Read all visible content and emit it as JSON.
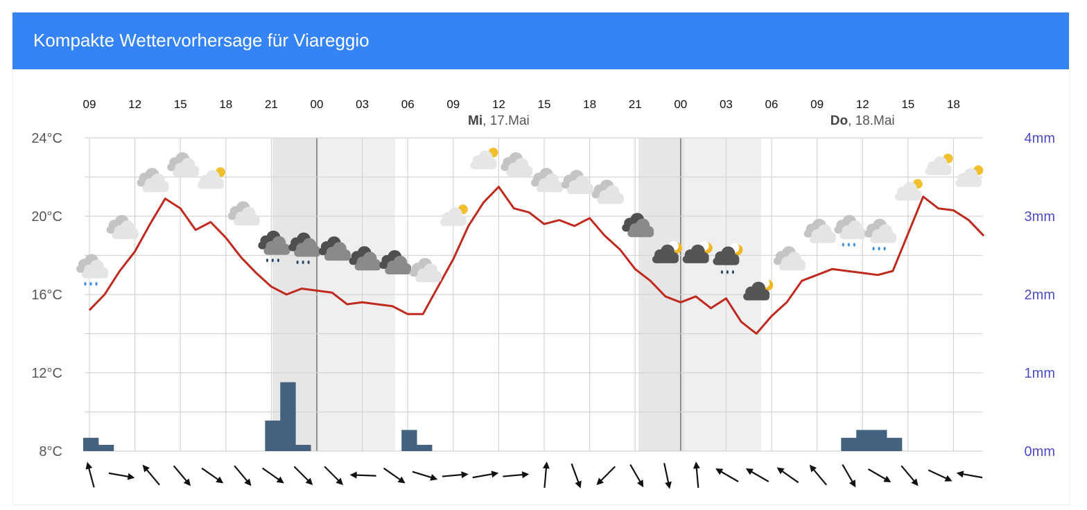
{
  "header": {
    "title": "Kompakte Wettervorhersage für Viareggio"
  },
  "colors": {
    "header_bg": "#3483f7",
    "temperature_line": "#c0291e",
    "precipitation_bar": "#42627f",
    "night_shade": "#efefef",
    "precip_axis_text": "#4b4bc4"
  },
  "chart_data": {
    "type": "line",
    "x_ticks": [
      "09",
      "12",
      "15",
      "18",
      "21",
      "00",
      "03",
      "06",
      "09",
      "12",
      "15",
      "18",
      "21",
      "00",
      "03",
      "06",
      "09",
      "12",
      "15",
      "18"
    ],
    "day_labels": [
      {
        "weekday": "Mi",
        "date": ", 17.Mai"
      },
      {
        "weekday": "Do",
        "date": ", 18.Mai"
      }
    ],
    "y_left": {
      "ticks": [
        "24°C",
        "20°C",
        "16°C",
        "12°C",
        "8°C"
      ],
      "range": [
        8,
        24
      ]
    },
    "y_right": {
      "ticks": [
        "4mm",
        "3mm",
        "2mm",
        "1mm",
        "0mm"
      ],
      "range": [
        0,
        4
      ]
    },
    "grid": true,
    "temperature": [
      15.2,
      16.0,
      17.2,
      18.2,
      19.6,
      20.9,
      20.4,
      19.3,
      19.7,
      18.9,
      17.9,
      17.1,
      16.4,
      16.0,
      16.3,
      16.2,
      16.1,
      15.5,
      15.6,
      15.5,
      15.4,
      15.0,
      15.0,
      16.4,
      17.8,
      19.5,
      20.7,
      21.5,
      20.4,
      20.2,
      19.6,
      19.8,
      19.5,
      19.9,
      19.0,
      18.3,
      17.3,
      16.7,
      15.9,
      15.6,
      15.9,
      15.3,
      15.8,
      14.6,
      14.0,
      14.9,
      15.6,
      16.7,
      17.0,
      17.3,
      17.2,
      17.1,
      17.0,
      17.2,
      19.1,
      21.0,
      20.4,
      20.3,
      19.8,
      19.0
    ],
    "precipitation": [
      {
        "slot": 0,
        "value": 0.17
      },
      {
        "slot": 1,
        "value": 0.08
      },
      {
        "slot": 12,
        "value": 0.39
      },
      {
        "slot": 13,
        "value": 0.88
      },
      {
        "slot": 14,
        "value": 0.08
      },
      {
        "slot": 21,
        "value": 0.27
      },
      {
        "slot": 22,
        "value": 0.08
      },
      {
        "slot": 50,
        "value": 0.17
      },
      {
        "slot": 51,
        "value": 0.27
      },
      {
        "slot": 52,
        "value": 0.27
      },
      {
        "slot": 53,
        "value": 0.17
      }
    ],
    "wind_arrows": [
      {
        "icon": "wind-arrow-icon",
        "angle": -15
      },
      {
        "icon": "wind-arrow-icon",
        "angle": 100
      },
      {
        "icon": "wind-arrow-icon",
        "angle": -40
      },
      {
        "icon": "wind-arrow-icon",
        "angle": 140
      },
      {
        "icon": "wind-arrow-icon",
        "angle": 125
      },
      {
        "icon": "wind-arrow-icon",
        "angle": 140
      },
      {
        "icon": "wind-arrow-icon",
        "angle": 125
      },
      {
        "icon": "wind-arrow-icon",
        "angle": 135
      },
      {
        "icon": "wind-arrow-icon",
        "angle": 135
      },
      {
        "icon": "wind-arrow-icon",
        "angle": -88
      },
      {
        "icon": "wind-arrow-icon",
        "angle": 125
      },
      {
        "icon": "wind-arrow-icon",
        "angle": 107
      },
      {
        "icon": "wind-arrow-icon",
        "angle": 85
      },
      {
        "icon": "wind-arrow-icon",
        "angle": 80
      },
      {
        "icon": "wind-arrow-icon",
        "angle": 85
      },
      {
        "icon": "wind-arrow-icon",
        "angle": 5
      },
      {
        "icon": "wind-arrow-icon",
        "angle": 160
      },
      {
        "icon": "wind-arrow-icon",
        "angle": -135
      },
      {
        "icon": "wind-arrow-icon",
        "angle": 150
      },
      {
        "icon": "wind-arrow-icon",
        "angle": 168
      },
      {
        "icon": "wind-arrow-icon",
        "angle": -5
      },
      {
        "icon": "wind-arrow-icon",
        "angle": -60
      },
      {
        "icon": "wind-arrow-icon",
        "angle": -60
      },
      {
        "icon": "wind-arrow-icon",
        "angle": -55
      },
      {
        "icon": "wind-arrow-icon",
        "angle": -40
      },
      {
        "icon": "wind-arrow-icon",
        "angle": 150
      },
      {
        "icon": "wind-arrow-icon",
        "angle": 120
      },
      {
        "icon": "wind-arrow-icon",
        "angle": 140
      },
      {
        "icon": "wind-arrow-icon",
        "angle": 115
      },
      {
        "icon": "wind-arrow-icon",
        "angle": -80
      }
    ],
    "weather_icons": [
      {
        "icon": "light-rain-icon",
        "shade": "light",
        "rain": true
      },
      {
        "icon": "cloudy-icon",
        "shade": "light"
      },
      {
        "icon": "cloudy-icon",
        "shade": "light"
      },
      {
        "icon": "cloudy-icon",
        "shade": "light"
      },
      {
        "icon": "partly-cloudy-day-icon",
        "shade": "light",
        "sun": true
      },
      {
        "icon": "cloudy-icon",
        "shade": "light"
      },
      {
        "icon": "rain-icon",
        "shade": "dark",
        "rain": true
      },
      {
        "icon": "rain-icon",
        "shade": "dark",
        "rain": true
      },
      {
        "icon": "cloudy-icon",
        "shade": "dark"
      },
      {
        "icon": "cloudy-icon",
        "shade": "dark"
      },
      {
        "icon": "cloudy-icon",
        "shade": "dark"
      },
      {
        "icon": "cloudy-icon",
        "shade": "light"
      },
      {
        "icon": "partly-cloudy-day-icon",
        "shade": "light",
        "sun": true
      },
      {
        "icon": "partly-cloudy-day-icon",
        "shade": "light",
        "sun": true
      },
      {
        "icon": "cloudy-icon",
        "shade": "light"
      },
      {
        "icon": "cloudy-icon",
        "shade": "light"
      },
      {
        "icon": "cloudy-icon",
        "shade": "light"
      },
      {
        "icon": "cloudy-icon",
        "shade": "light"
      },
      {
        "icon": "cloudy-icon",
        "shade": "dark"
      },
      {
        "icon": "partly-cloudy-night-icon",
        "shade": "dark",
        "moon": true
      },
      {
        "icon": "partly-cloudy-night-icon",
        "shade": "dark",
        "moon": true
      },
      {
        "icon": "rain-night-icon",
        "shade": "dark",
        "moon": true,
        "rain": true
      },
      {
        "icon": "partly-cloudy-night-icon",
        "shade": "dark",
        "moon": true
      },
      {
        "icon": "cloudy-icon",
        "shade": "light"
      },
      {
        "icon": "cloudy-icon",
        "shade": "light"
      },
      {
        "icon": "light-rain-icon",
        "shade": "light",
        "rain": true
      },
      {
        "icon": "light-rain-icon",
        "shade": "light",
        "rain": true
      },
      {
        "icon": "partly-cloudy-day-icon",
        "shade": "light",
        "sun": true
      },
      {
        "icon": "partly-cloudy-day-icon",
        "shade": "light",
        "sun": true
      },
      {
        "icon": "partly-cloudy-day-icon",
        "shade": "light",
        "sun": true
      }
    ]
  }
}
